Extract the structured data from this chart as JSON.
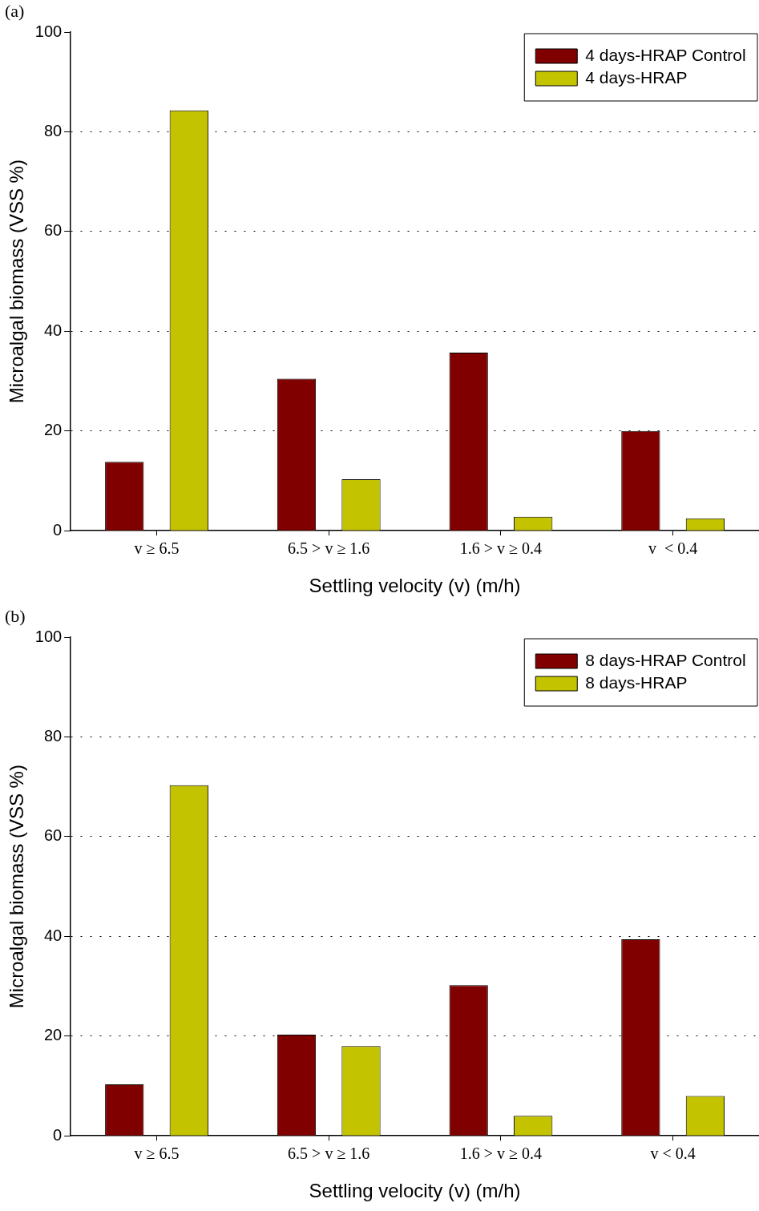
{
  "chart_data": [
    {
      "type": "bar",
      "annotations": [
        "(a)"
      ],
      "xlabel": "Settling velocity (v) (m/h)",
      "ylabel": "Microalgal biomass (VSS %)",
      "categories": [
        "v ≥ 6.5",
        "6.5 > v ≥ 1.6",
        "1.6 > v ≥ 0.4",
        "v  < 0.4"
      ],
      "series": [
        {
          "name": "4 days-HRAP Control",
          "color": "#800000",
          "values": [
            13.8,
            30.5,
            35.7,
            20
          ]
        },
        {
          "name": "4 days-HRAP",
          "color": "#c3c300",
          "values": [
            84.3,
            10.3,
            2.8,
            2.5
          ]
        }
      ],
      "ylim": [
        0,
        100
      ],
      "yticks": [
        0,
        20,
        40,
        60,
        80,
        100
      ],
      "grid": "y",
      "legend": "top right"
    },
    {
      "type": "bar",
      "annotations": [
        "(b)"
      ],
      "xlabel": "Settling velocity (v) (m/h)",
      "ylabel": "Microalgal biomass (VSS %)",
      "categories": [
        "v ≥ 6.5",
        "6.5 > v ≥ 1.6",
        "1.6 > v ≥ 0.4",
        "v < 0.4"
      ],
      "series": [
        {
          "name": "8 days-HRAP Control",
          "color": "#800000",
          "values": [
            10.3,
            20.3,
            30.2,
            39.4
          ]
        },
        {
          "name": "8 days-HRAP",
          "color": "#c3c300",
          "values": [
            70.3,
            18,
            4,
            8
          ]
        }
      ],
      "ylim": [
        0,
        100
      ],
      "yticks": [
        0,
        20,
        40,
        60,
        80,
        100
      ],
      "grid": "y",
      "legend": "top right"
    }
  ]
}
